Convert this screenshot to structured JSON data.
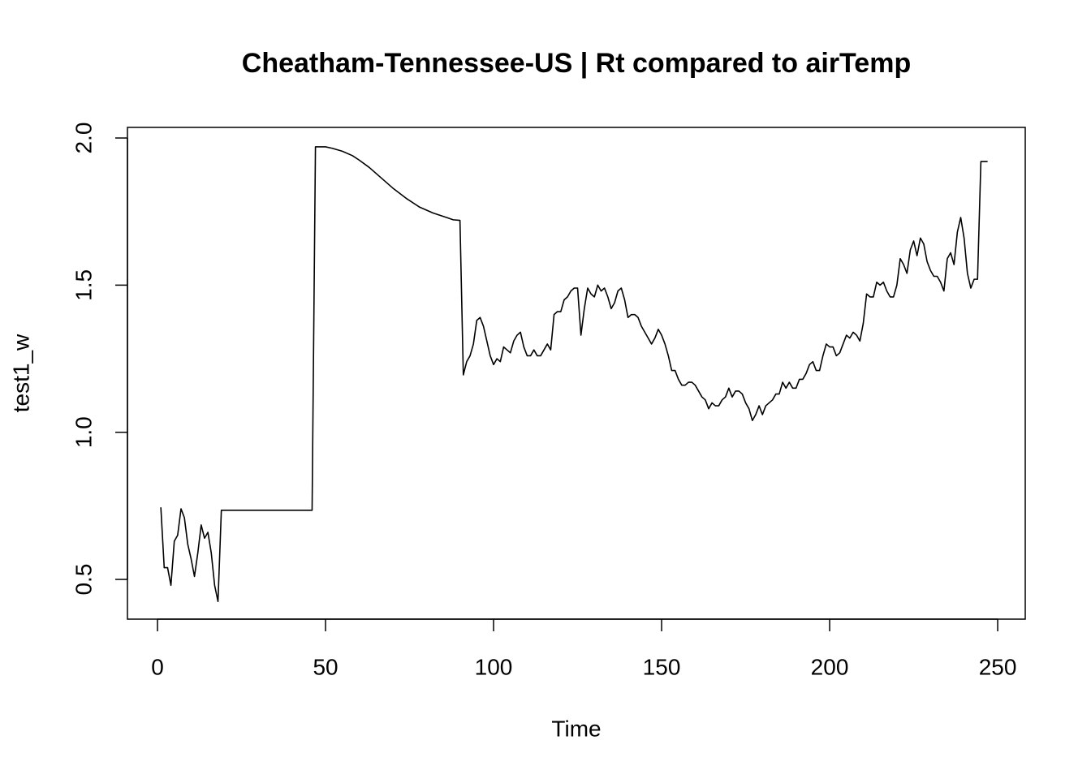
{
  "chart_data": {
    "type": "line",
    "title": "Cheatham-Tennessee-US | Rt compared to airTemp",
    "x_label": "Time",
    "y_label": "test1_w",
    "series": [
      {
        "name": "test1_w",
        "color": "#000000",
        "x": [
          1,
          2,
          3,
          4,
          5,
          6,
          7,
          8,
          9,
          10,
          11,
          12,
          13,
          14,
          15,
          16,
          17,
          18,
          19,
          46,
          47,
          48,
          50,
          52,
          55,
          58,
          60,
          63,
          66,
          70,
          74,
          78,
          82,
          86,
          88,
          90,
          91,
          92,
          93,
          94,
          95,
          96,
          97,
          98,
          99,
          100,
          101,
          102,
          103,
          104,
          105,
          106,
          107,
          108,
          109,
          110,
          111,
          112,
          113,
          114,
          115,
          116,
          117,
          118,
          119,
          120,
          121,
          122,
          123,
          124,
          125,
          126,
          127,
          128,
          129,
          130,
          131,
          132,
          133,
          134,
          135,
          136,
          137,
          138,
          139,
          140,
          141,
          142,
          143,
          144,
          145,
          146,
          147,
          148,
          149,
          150,
          151,
          152,
          153,
          154,
          155,
          156,
          157,
          158,
          159,
          160,
          161,
          162,
          163,
          164,
          165,
          166,
          167,
          168,
          169,
          170,
          171,
          172,
          173,
          174,
          175,
          176,
          177,
          178,
          179,
          180,
          181,
          182,
          183,
          184,
          185,
          186,
          187,
          188,
          189,
          190,
          191,
          192,
          193,
          194,
          195,
          196,
          197,
          198,
          199,
          200,
          201,
          202,
          203,
          204,
          205,
          206,
          207,
          208,
          209,
          210,
          211,
          212,
          213,
          214,
          215,
          216,
          217,
          218,
          219,
          220,
          221,
          222,
          223,
          224,
          225,
          226,
          227,
          228,
          229,
          230,
          231,
          232,
          233,
          234,
          235,
          236,
          237,
          238,
          239,
          240,
          241,
          242,
          243,
          244,
          245,
          246,
          247
        ],
        "values": [
          0.745,
          0.54,
          0.54,
          0.48,
          0.63,
          0.65,
          0.74,
          0.71,
          0.62,
          0.57,
          0.51,
          0.59,
          0.685,
          0.64,
          0.66,
          0.59,
          0.48,
          0.425,
          0.735,
          0.735,
          1.97,
          1.97,
          1.97,
          1.965,
          1.955,
          1.94,
          1.925,
          1.9,
          1.87,
          1.83,
          1.795,
          1.765,
          1.745,
          1.73,
          1.722,
          1.72,
          1.195,
          1.24,
          1.26,
          1.3,
          1.38,
          1.39,
          1.36,
          1.31,
          1.26,
          1.23,
          1.25,
          1.24,
          1.29,
          1.28,
          1.27,
          1.31,
          1.33,
          1.34,
          1.29,
          1.26,
          1.26,
          1.28,
          1.26,
          1.26,
          1.28,
          1.3,
          1.28,
          1.4,
          1.41,
          1.41,
          1.45,
          1.46,
          1.48,
          1.49,
          1.49,
          1.33,
          1.42,
          1.49,
          1.47,
          1.46,
          1.5,
          1.48,
          1.49,
          1.46,
          1.42,
          1.44,
          1.48,
          1.49,
          1.45,
          1.39,
          1.4,
          1.4,
          1.39,
          1.36,
          1.34,
          1.32,
          1.3,
          1.32,
          1.35,
          1.33,
          1.3,
          1.26,
          1.21,
          1.21,
          1.18,
          1.16,
          1.16,
          1.17,
          1.17,
          1.16,
          1.14,
          1.12,
          1.11,
          1.08,
          1.1,
          1.09,
          1.09,
          1.11,
          1.12,
          1.15,
          1.12,
          1.14,
          1.14,
          1.13,
          1.1,
          1.08,
          1.04,
          1.06,
          1.09,
          1.06,
          1.09,
          1.1,
          1.11,
          1.13,
          1.13,
          1.17,
          1.15,
          1.17,
          1.15,
          1.15,
          1.18,
          1.18,
          1.2,
          1.23,
          1.24,
          1.21,
          1.21,
          1.26,
          1.3,
          1.29,
          1.29,
          1.26,
          1.27,
          1.3,
          1.33,
          1.32,
          1.34,
          1.33,
          1.31,
          1.37,
          1.47,
          1.46,
          1.46,
          1.51,
          1.5,
          1.51,
          1.48,
          1.46,
          1.46,
          1.5,
          1.59,
          1.57,
          1.54,
          1.62,
          1.65,
          1.6,
          1.66,
          1.64,
          1.58,
          1.55,
          1.53,
          1.53,
          1.51,
          1.48,
          1.59,
          1.61,
          1.57,
          1.68,
          1.73,
          1.66,
          1.54,
          1.49,
          1.52,
          1.52,
          1.92,
          1.92,
          1.92
        ]
      }
    ],
    "xlim": [
      -8.94,
      258.2
    ],
    "ylim": [
      0.365,
      2.036
    ],
    "xticks": [
      0,
      50,
      100,
      150,
      200,
      250
    ],
    "yticks": [
      0.5,
      {
        "value": 1.0,
        "label": "1.0"
      },
      1.5,
      {
        "value": 2.0,
        "label": "2.0"
      }
    ],
    "grid": false
  }
}
